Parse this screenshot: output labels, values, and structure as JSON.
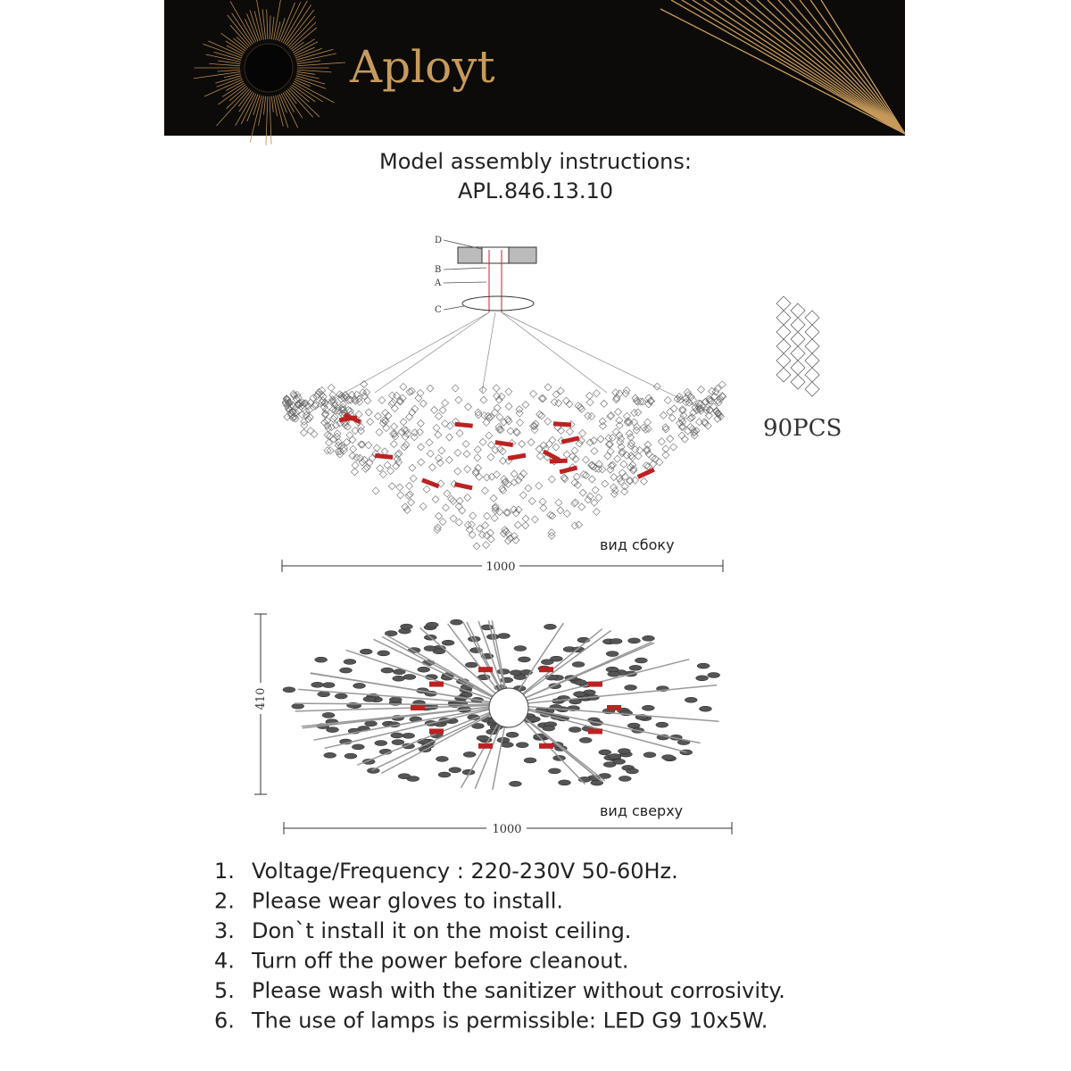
{
  "header": {
    "brand": "Aployt"
  },
  "title": {
    "line1": "Model assembly instructions:",
    "line2": "APL.846.13.10"
  },
  "side_view": {
    "parts": [
      "D",
      "B",
      "A",
      "C"
    ],
    "pieces": "90PCS",
    "caption": "вид сбоку",
    "width": "1000"
  },
  "top_view": {
    "height": "410",
    "caption": "вид сверху",
    "width": "1000"
  },
  "instructions": [
    {
      "number": "1.",
      "text": "Voltage/Frequency : 220-230V 50-60Hz."
    },
    {
      "number": "2.",
      "text": "Please wear gloves to install."
    },
    {
      "number": "3.",
      "text": "Don`t install it on the moist ceiling."
    },
    {
      "number": "4.",
      "text": "Turn off the power before cleanout."
    },
    {
      "number": "5.",
      "text": "Please wash with the sanitizer without corrosivity."
    },
    {
      "number": "6.",
      "text": "The use of lamps is permissible: LED G9 10x5W."
    }
  ]
}
